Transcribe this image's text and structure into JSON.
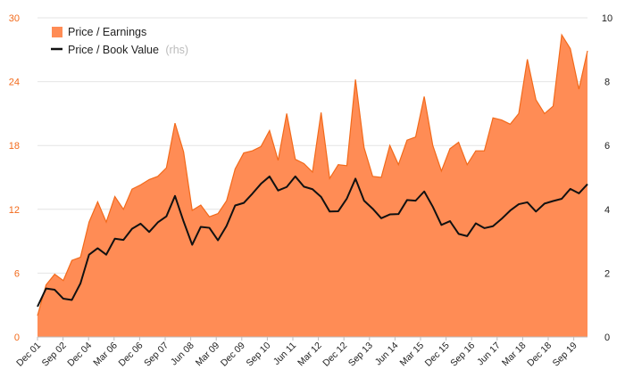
{
  "chart_data": {
    "type": "area",
    "legend": {
      "placement": "top-left",
      "items": [
        {
          "label": "Price / Earnings",
          "suffix": "",
          "marker": "area",
          "color": "#ff8c55"
        },
        {
          "label": "Price / Book Value",
          "suffix": "(rhs)",
          "marker": "line",
          "color": "#111111"
        }
      ]
    },
    "left_axis": {
      "ticks": [
        0,
        6,
        12,
        18,
        24,
        30
      ],
      "ylim": [
        0,
        30
      ],
      "color": "#f26a1b"
    },
    "right_axis": {
      "ticks": [
        0,
        2,
        4,
        6,
        8,
        10
      ],
      "ylim": [
        0,
        10
      ],
      "color": "#222222"
    },
    "x_tick_labels": [
      "Dec 01",
      "Sep 02",
      "Dec 04",
      "Mar 06",
      "Dec 06",
      "Sep 07",
      "Jun 08",
      "Mar 09",
      "Dec 09",
      "Sep 10",
      "Jun 11",
      "Mar 12",
      "Dec 12",
      "Sep 13",
      "Jun 14",
      "Mar 15",
      "Dec 15",
      "Sep 16",
      "Jun 17",
      "Mar 18",
      "Dec 18",
      "Sep 19"
    ],
    "grid": {
      "horizontal": true,
      "vertical": false
    },
    "series": [
      {
        "name": "Price / Earnings",
        "axis": "left",
        "type": "area",
        "color": "#ff8c55",
        "stroke": "#f26a1b",
        "values": [
          2.0,
          4.9,
          5.9,
          5.3,
          7.2,
          7.5,
          10.8,
          12.7,
          10.8,
          13.2,
          12.0,
          13.9,
          14.3,
          14.8,
          15.1,
          15.9,
          20.1,
          17.4,
          11.9,
          12.4,
          11.3,
          11.6,
          12.8,
          15.8,
          17.3,
          17.5,
          17.9,
          19.4,
          16.6,
          21.0,
          16.7,
          16.3,
          15.5,
          21.1,
          14.9,
          16.2,
          16.1,
          24.2,
          17.8,
          15.1,
          15.0,
          18.0,
          16.2,
          18.5,
          18.8,
          22.6,
          18.0,
          15.6,
          17.7,
          18.3,
          16.2,
          17.5,
          17.5,
          20.6,
          20.4,
          20.0,
          21.0,
          26.1,
          22.3,
          21.0,
          21.7,
          28.4,
          27.1,
          23.3,
          26.9
        ]
      },
      {
        "name": "Price / Book Value",
        "axis": "right",
        "type": "line",
        "color": "#111111",
        "values": [
          0.95,
          1.52,
          1.48,
          1.2,
          1.16,
          1.68,
          2.58,
          2.78,
          2.58,
          3.08,
          3.04,
          3.39,
          3.55,
          3.29,
          3.59,
          3.78,
          4.42,
          3.62,
          2.89,
          3.45,
          3.42,
          3.03,
          3.48,
          4.12,
          4.2,
          4.49,
          4.8,
          5.03,
          4.59,
          4.7,
          5.03,
          4.71,
          4.63,
          4.39,
          3.93,
          3.94,
          4.34,
          4.96,
          4.27,
          4.02,
          3.72,
          3.84,
          3.85,
          4.29,
          4.27,
          4.56,
          4.08,
          3.51,
          3.63,
          3.23,
          3.16,
          3.56,
          3.41,
          3.47,
          3.7,
          3.96,
          4.16,
          4.22,
          3.93,
          4.18,
          4.26,
          4.33,
          4.64,
          4.5,
          4.79
        ]
      }
    ]
  }
}
